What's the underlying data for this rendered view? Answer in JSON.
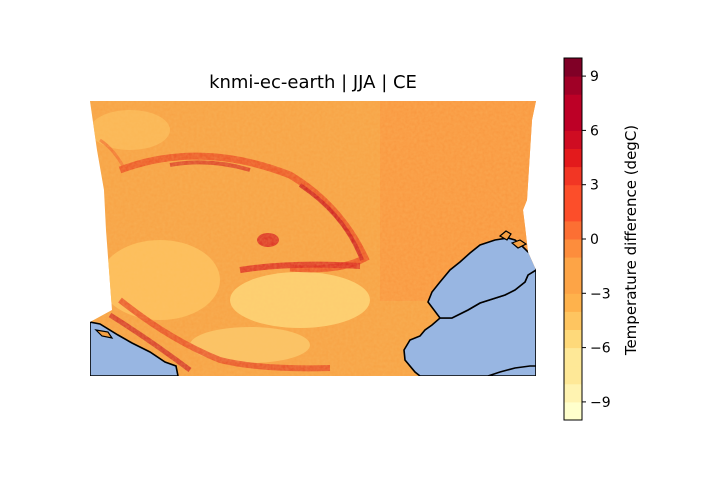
{
  "title": "knmi-ec-earth | JJA | CE",
  "colorbar": {
    "label": "Temperature difference (degC)",
    "min": -10,
    "max": 10,
    "levels": 20,
    "ticks": [
      -9,
      -6,
      -3,
      0,
      3,
      6,
      9
    ],
    "tick_labels": [
      "−9",
      "−6",
      "−3",
      "0",
      "3",
      "6",
      "9"
    ],
    "colormap": "YlOrRd",
    "colors": [
      "#ffffcc",
      "#fff3b1",
      "#fee897",
      "#fed97a",
      "#fec560",
      "#feb24c",
      "#fda446",
      "#fd8d3c",
      "#fc6f33",
      "#fc4e2a",
      "#f23624",
      "#e31a1c",
      "#cf0c22",
      "#bd0026",
      "#a00026",
      "#800026"
    ]
  },
  "map": {
    "region": "CE",
    "season": "JJA",
    "model": "knmi-ec-earth",
    "land_background_color": "#f7a244",
    "ocean_color": "#98b6e2",
    "coastline_color": "#000000"
  }
}
